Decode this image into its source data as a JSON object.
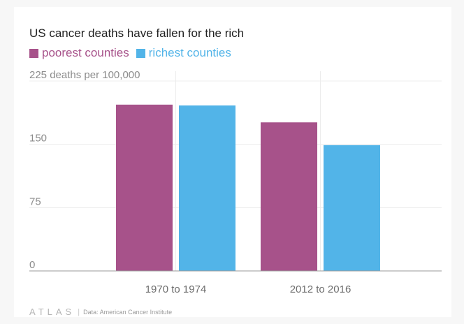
{
  "chart_data": {
    "type": "bar",
    "title": "US cancer deaths have fallen for the rich",
    "categories": [
      "1970 to 1974",
      "2012 to 2016"
    ],
    "series": [
      {
        "name": "poorest counties",
        "color": "#a7528a",
        "values": [
          197,
          176
        ]
      },
      {
        "name": "richest counties",
        "color": "#52b4e8",
        "values": [
          196,
          149
        ]
      }
    ],
    "ylim": [
      0,
      225
    ],
    "yticks": [
      0,
      75,
      150,
      225
    ],
    "ytick_labels": [
      "0",
      "75",
      "150",
      "225 deaths per 100,000"
    ],
    "grid": true
  },
  "footer": {
    "brand": "ATLAS",
    "separator": "|",
    "source": "Data: American Cancer Institute"
  }
}
